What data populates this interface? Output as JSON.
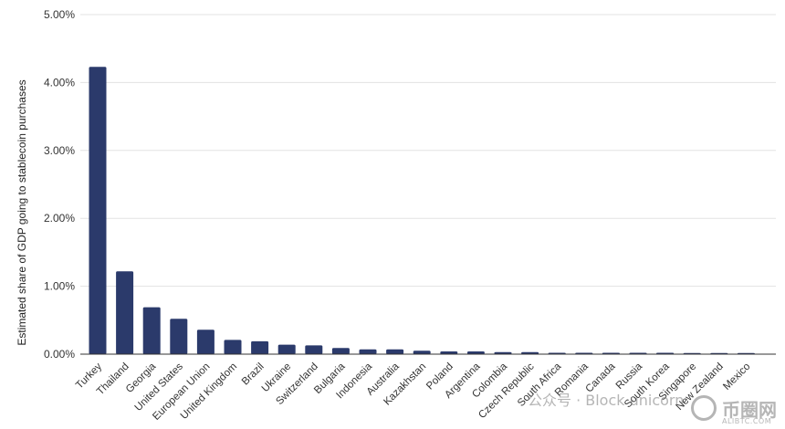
{
  "chart_data": {
    "type": "bar",
    "ylabel": "Estimated share of GDP going to stablecoin purchases",
    "xlabel": "",
    "ylim": [
      0,
      5
    ],
    "y_ticks": [
      "0.00%",
      "1.00%",
      "2.00%",
      "3.00%",
      "4.00%",
      "5.00%"
    ],
    "y_tick_values": [
      0,
      1,
      2,
      3,
      4,
      5
    ],
    "grid": true,
    "bar_color": "#2b3a6b",
    "categories": [
      "Turkey",
      "Thailand",
      "Georgia",
      "United States",
      "European Union",
      "United Kingdom",
      "Brazil",
      "Ukraine",
      "Switzerland",
      "Bulgaria",
      "Indonesia",
      "Australia",
      "Kazakhstan",
      "Poland",
      "Argentina",
      "Colombia",
      "Czech Republic",
      "South Africa",
      "Romania",
      "Canada",
      "Russia",
      "South Korea",
      "Singapore",
      "New Zealand",
      "Mexico"
    ],
    "values": [
      4.23,
      1.22,
      0.69,
      0.52,
      0.36,
      0.21,
      0.19,
      0.14,
      0.13,
      0.09,
      0.07,
      0.07,
      0.05,
      0.04,
      0.04,
      0.03,
      0.03,
      0.02,
      0.02,
      0.02,
      0.02,
      0.02,
      0.01,
      0.01,
      0.01
    ]
  },
  "watermark": {
    "text": "公众号 · Block unicorn",
    "logo_name": "币圈网",
    "logo_url": "ALIBTC.COM"
  }
}
